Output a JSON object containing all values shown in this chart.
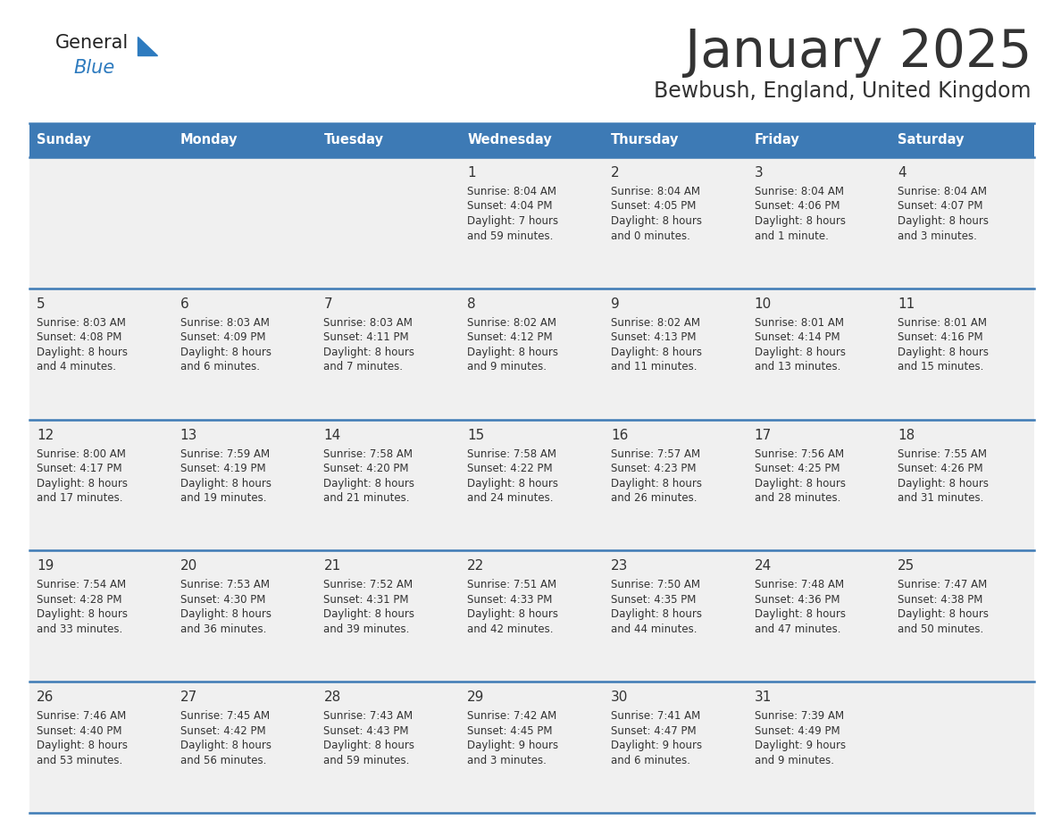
{
  "title": "January 2025",
  "subtitle": "Bewbush, England, United Kingdom",
  "header_bg": "#3d7ab5",
  "header_text_color": "#ffffff",
  "cell_bg": "#f0f0f0",
  "border_color": "#3d7ab5",
  "text_color": "#333333",
  "days_of_week": [
    "Sunday",
    "Monday",
    "Tuesday",
    "Wednesday",
    "Thursday",
    "Friday",
    "Saturday"
  ],
  "calendar": [
    [
      {
        "day": "",
        "sunrise": "",
        "sunset": "",
        "daylight": ""
      },
      {
        "day": "",
        "sunrise": "",
        "sunset": "",
        "daylight": ""
      },
      {
        "day": "",
        "sunrise": "",
        "sunset": "",
        "daylight": ""
      },
      {
        "day": "1",
        "sunrise": "8:04 AM",
        "sunset": "4:04 PM",
        "daylight": "7 hours and 59 minutes."
      },
      {
        "day": "2",
        "sunrise": "8:04 AM",
        "sunset": "4:05 PM",
        "daylight": "8 hours and 0 minutes."
      },
      {
        "day": "3",
        "sunrise": "8:04 AM",
        "sunset": "4:06 PM",
        "daylight": "8 hours and 1 minute."
      },
      {
        "day": "4",
        "sunrise": "8:04 AM",
        "sunset": "4:07 PM",
        "daylight": "8 hours and 3 minutes."
      }
    ],
    [
      {
        "day": "5",
        "sunrise": "8:03 AM",
        "sunset": "4:08 PM",
        "daylight": "8 hours and 4 minutes."
      },
      {
        "day": "6",
        "sunrise": "8:03 AM",
        "sunset": "4:09 PM",
        "daylight": "8 hours and 6 minutes."
      },
      {
        "day": "7",
        "sunrise": "8:03 AM",
        "sunset": "4:11 PM",
        "daylight": "8 hours and 7 minutes."
      },
      {
        "day": "8",
        "sunrise": "8:02 AM",
        "sunset": "4:12 PM",
        "daylight": "8 hours and 9 minutes."
      },
      {
        "day": "9",
        "sunrise": "8:02 AM",
        "sunset": "4:13 PM",
        "daylight": "8 hours and 11 minutes."
      },
      {
        "day": "10",
        "sunrise": "8:01 AM",
        "sunset": "4:14 PM",
        "daylight": "8 hours and 13 minutes."
      },
      {
        "day": "11",
        "sunrise": "8:01 AM",
        "sunset": "4:16 PM",
        "daylight": "8 hours and 15 minutes."
      }
    ],
    [
      {
        "day": "12",
        "sunrise": "8:00 AM",
        "sunset": "4:17 PM",
        "daylight": "8 hours and 17 minutes."
      },
      {
        "day": "13",
        "sunrise": "7:59 AM",
        "sunset": "4:19 PM",
        "daylight": "8 hours and 19 minutes."
      },
      {
        "day": "14",
        "sunrise": "7:58 AM",
        "sunset": "4:20 PM",
        "daylight": "8 hours and 21 minutes."
      },
      {
        "day": "15",
        "sunrise": "7:58 AM",
        "sunset": "4:22 PM",
        "daylight": "8 hours and 24 minutes."
      },
      {
        "day": "16",
        "sunrise": "7:57 AM",
        "sunset": "4:23 PM",
        "daylight": "8 hours and 26 minutes."
      },
      {
        "day": "17",
        "sunrise": "7:56 AM",
        "sunset": "4:25 PM",
        "daylight": "8 hours and 28 minutes."
      },
      {
        "day": "18",
        "sunrise": "7:55 AM",
        "sunset": "4:26 PM",
        "daylight": "8 hours and 31 minutes."
      }
    ],
    [
      {
        "day": "19",
        "sunrise": "7:54 AM",
        "sunset": "4:28 PM",
        "daylight": "8 hours and 33 minutes."
      },
      {
        "day": "20",
        "sunrise": "7:53 AM",
        "sunset": "4:30 PM",
        "daylight": "8 hours and 36 minutes."
      },
      {
        "day": "21",
        "sunrise": "7:52 AM",
        "sunset": "4:31 PM",
        "daylight": "8 hours and 39 minutes."
      },
      {
        "day": "22",
        "sunrise": "7:51 AM",
        "sunset": "4:33 PM",
        "daylight": "8 hours and 42 minutes."
      },
      {
        "day": "23",
        "sunrise": "7:50 AM",
        "sunset": "4:35 PM",
        "daylight": "8 hours and 44 minutes."
      },
      {
        "day": "24",
        "sunrise": "7:48 AM",
        "sunset": "4:36 PM",
        "daylight": "8 hours and 47 minutes."
      },
      {
        "day": "25",
        "sunrise": "7:47 AM",
        "sunset": "4:38 PM",
        "daylight": "8 hours and 50 minutes."
      }
    ],
    [
      {
        "day": "26",
        "sunrise": "7:46 AM",
        "sunset": "4:40 PM",
        "daylight": "8 hours and 53 minutes."
      },
      {
        "day": "27",
        "sunrise": "7:45 AM",
        "sunset": "4:42 PM",
        "daylight": "8 hours and 56 minutes."
      },
      {
        "day": "28",
        "sunrise": "7:43 AM",
        "sunset": "4:43 PM",
        "daylight": "8 hours and 59 minutes."
      },
      {
        "day": "29",
        "sunrise": "7:42 AM",
        "sunset": "4:45 PM",
        "daylight": "9 hours and 3 minutes."
      },
      {
        "day": "30",
        "sunrise": "7:41 AM",
        "sunset": "4:47 PM",
        "daylight": "9 hours and 6 minutes."
      },
      {
        "day": "31",
        "sunrise": "7:39 AM",
        "sunset": "4:49 PM",
        "daylight": "9 hours and 9 minutes."
      },
      {
        "day": "",
        "sunrise": "",
        "sunset": "",
        "daylight": ""
      }
    ]
  ],
  "logo_color_general": "#222222",
  "logo_color_blue": "#2e7bbf",
  "logo_triangle_color": "#2e7bbf"
}
